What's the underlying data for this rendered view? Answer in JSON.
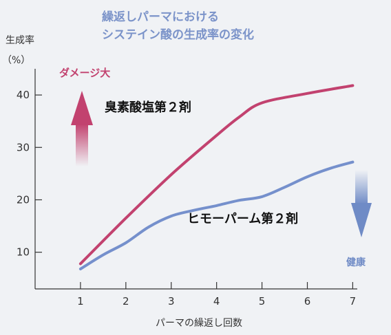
{
  "chart_data": {
    "type": "line",
    "title_lines": [
      "繰返しパーマにおける",
      "システイン酸の生成率の変化"
    ],
    "ylabel": "生成率",
    "yunit": "（%）",
    "xlabel": "パーマの繰返し回数",
    "x": [
      1,
      2,
      3,
      4,
      5,
      6,
      7
    ],
    "xlim": [
      0,
      7.1
    ],
    "ylim": [
      3,
      45
    ],
    "yticks": [
      10,
      20,
      30,
      40
    ],
    "grid": false,
    "series": [
      {
        "name": "臭素酸塩第２剤",
        "color": "#c2426f",
        "points": [
          [
            1,
            7.8
          ],
          [
            2,
            16.5
          ],
          [
            3,
            24.8
          ],
          [
            4,
            32.3
          ],
          [
            4.5,
            35.8
          ],
          [
            5,
            38.5
          ],
          [
            6,
            40.3
          ],
          [
            7,
            41.8
          ]
        ]
      },
      {
        "name": "ヒモーパーム第２剤",
        "color": "#7590cc",
        "points": [
          [
            1,
            6.8
          ],
          [
            1.5,
            9.5
          ],
          [
            2,
            11.8
          ],
          [
            2.5,
            14.8
          ],
          [
            3,
            16.9
          ],
          [
            3.5,
            18.0
          ],
          [
            4,
            18.9
          ],
          [
            4.5,
            19.9
          ],
          [
            5,
            20.6
          ],
          [
            5.5,
            22.4
          ],
          [
            6,
            24.4
          ],
          [
            6.5,
            26.0
          ],
          [
            7,
            27.2
          ]
        ]
      }
    ],
    "annotations": {
      "damage": "ダメージ大",
      "healthy": "健康"
    }
  }
}
